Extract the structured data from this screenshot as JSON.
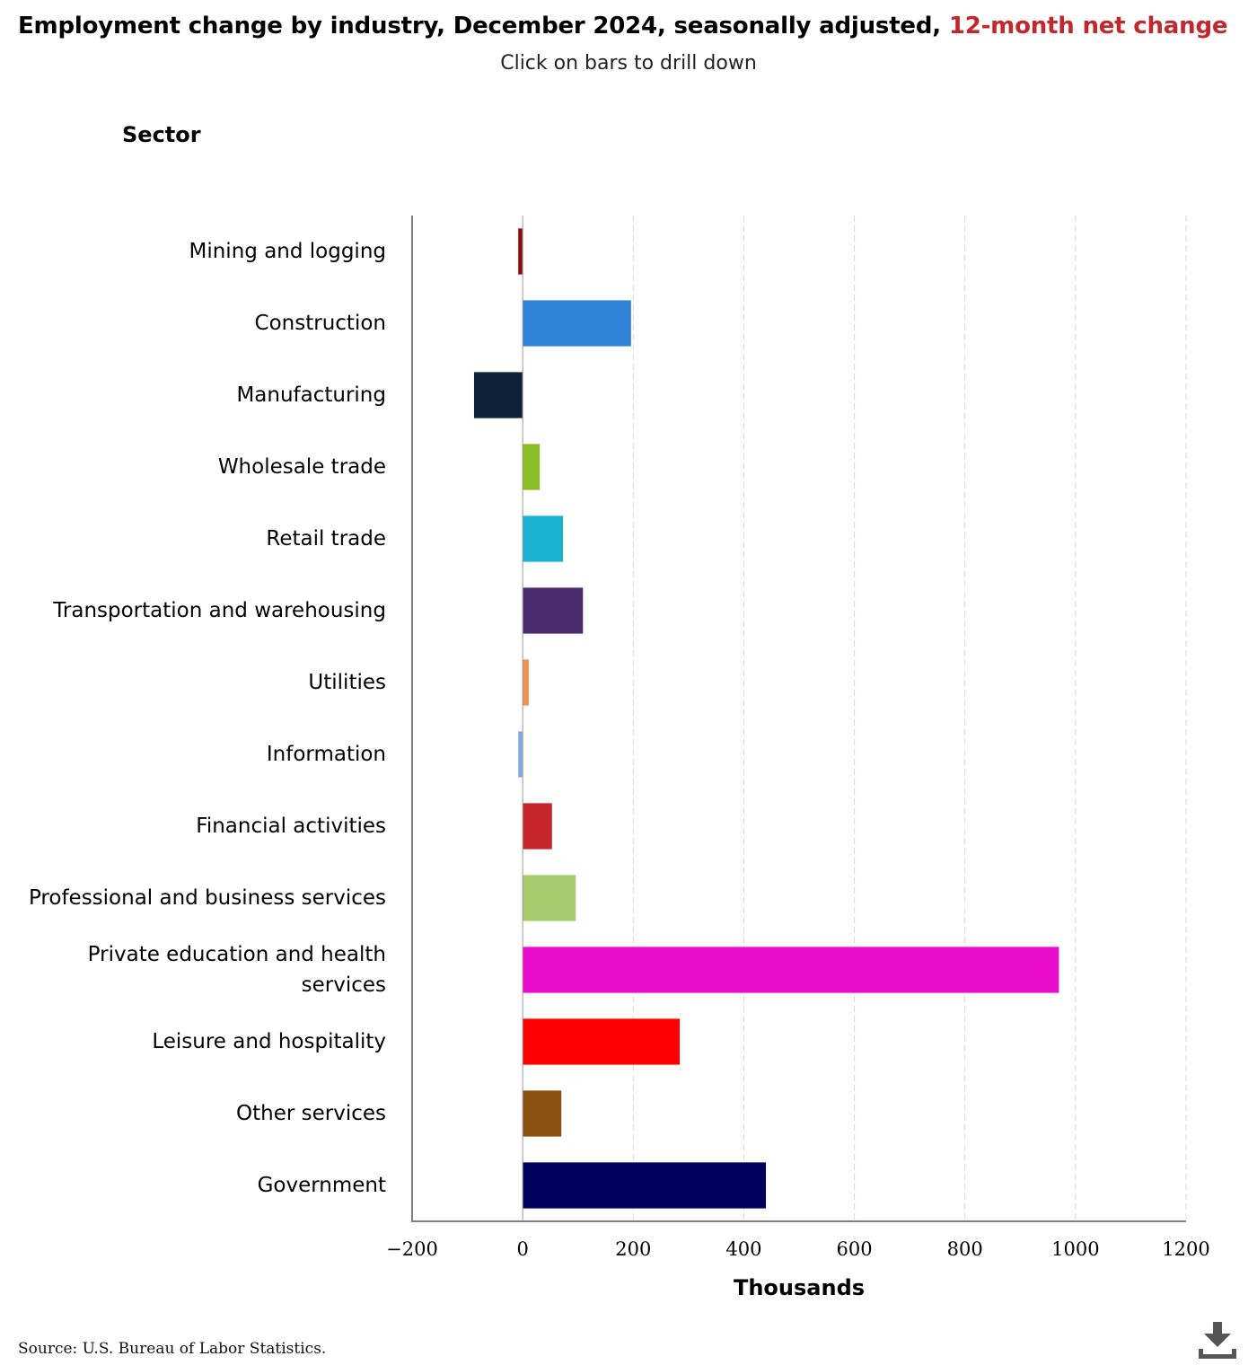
{
  "title": {
    "main": "Employment change by industry, December 2024, seasonally adjusted, ",
    "highlight": "12-month net change",
    "highlight_color": "#c0282d"
  },
  "subtitle": "Click on bars to drill down",
  "source": "Source: U.S. Bureau of Labor Statistics.",
  "download": {
    "icon": "download-icon"
  },
  "chart_data": {
    "type": "bar",
    "orientation": "horizontal",
    "ylabel": "Sector",
    "xlabel": "Thousands",
    "xlim": [
      -200,
      1200
    ],
    "xticks": [
      -200,
      0,
      200,
      400,
      600,
      800,
      1000,
      1200
    ],
    "xtick_labels": [
      "−200",
      "0",
      "200",
      "400",
      "600",
      "800",
      "1000",
      "1200"
    ],
    "grid": "vertical dashed",
    "legend": "none",
    "categories": [
      [
        "Mining and logging"
      ],
      [
        "Construction"
      ],
      [
        "Manufacturing"
      ],
      [
        "Wholesale trade"
      ],
      [
        "Retail trade"
      ],
      [
        "Transportation and warehousing"
      ],
      [
        "Utilities"
      ],
      [
        "Information"
      ],
      [
        "Financial activities"
      ],
      [
        "Professional and business services"
      ],
      [
        "Private education and health",
        "services"
      ],
      [
        "Leisure and hospitality"
      ],
      [
        "Other services"
      ],
      [
        "Government"
      ]
    ],
    "values": [
      -8,
      196,
      -88,
      31,
      73,
      109,
      11,
      -8,
      53,
      96,
      970,
      284,
      70,
      440
    ],
    "colors": [
      "#8b0a0a",
      "#3182d9",
      "#0f2138",
      "#8bbd26",
      "#1ab0d0",
      "#4a2a6c",
      "#f0914f",
      "#7fa8e8",
      "#c5262a",
      "#a7cc6f",
      "#e90ccc",
      "#ff0000",
      "#8a5010",
      "#00005f"
    ]
  }
}
